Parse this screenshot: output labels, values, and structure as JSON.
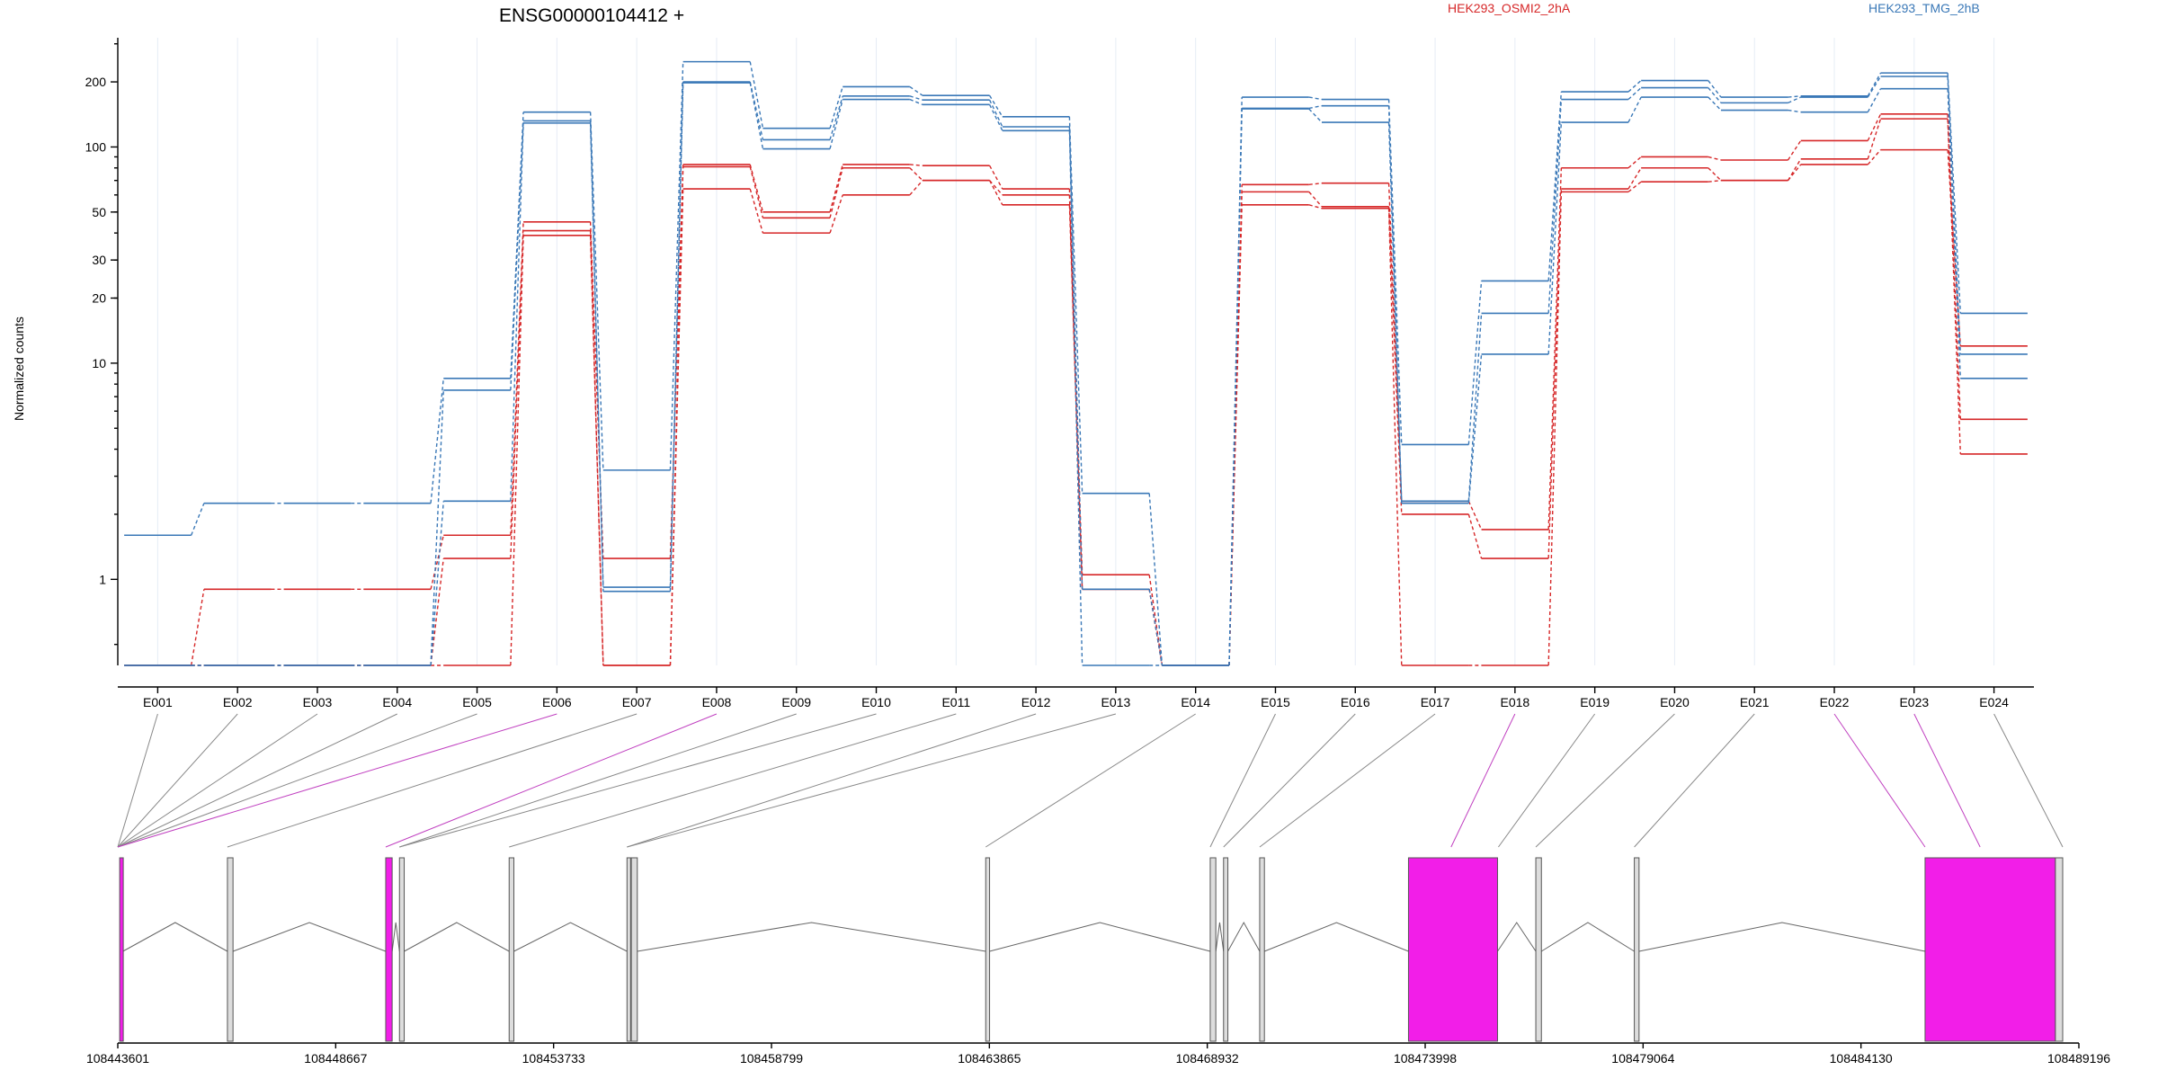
{
  "chart_data": {
    "type": "line",
    "title": "ENSG00000104412 +",
    "ylabel": "Normalized counts",
    "yscale": "log",
    "ylim": [
      0.4,
      320
    ],
    "yticks": [
      1,
      10,
      20,
      30,
      50,
      100,
      200
    ],
    "exons": [
      "E001",
      "E002",
      "E003",
      "E004",
      "E005",
      "E006",
      "E007",
      "E008",
      "E009",
      "E010",
      "E011",
      "E012",
      "E013",
      "E014",
      "E015",
      "E016",
      "E017",
      "E018",
      "E019",
      "E020",
      "E021",
      "E022",
      "E023",
      "E024"
    ],
    "legend": [
      {
        "name": "HEK293_OSMI2_2hA",
        "color": "#d62728"
      },
      {
        "name": "HEK293_TMG_2hB",
        "color": "#3a78b7"
      }
    ],
    "series": [
      {
        "group": "HEK293_OSMI2_2hA",
        "color": "#d62728",
        "values": [
          0.4,
          0.9,
          0.9,
          0.9,
          1.6,
          45,
          1.25,
          83,
          50,
          83,
          82,
          64,
          1.05,
          0.4,
          67,
          68,
          2.3,
          1.7,
          80,
          90,
          87,
          107,
          142,
          5.5
        ]
      },
      {
        "group": "HEK293_OSMI2_2hA",
        "color": "#d62728",
        "values": [
          0.4,
          0.4,
          0.4,
          0.4,
          1.25,
          41,
          0.4,
          81,
          47,
          80,
          70,
          60,
          0.9,
          0.4,
          62,
          53,
          2,
          1.25,
          64,
          80,
          70,
          88,
          135,
          3.8
        ]
      },
      {
        "group": "HEK293_OSMI2_2hA",
        "color": "#d62728",
        "values": [
          0.4,
          0.4,
          0.4,
          0.4,
          0.4,
          39,
          0.4,
          64,
          40,
          60,
          70,
          54,
          0.9,
          0.4,
          54,
          52,
          0.4,
          0.4,
          62,
          69,
          70,
          83,
          97,
          12
        ]
      },
      {
        "group": "HEK293_TMG_2hB",
        "color": "#3a78b7",
        "values": [
          1.6,
          2.25,
          2.25,
          2.25,
          8.5,
          145,
          3.2,
          248,
          122,
          190,
          173,
          138,
          2.5,
          0.4,
          170,
          166,
          4.2,
          24,
          180,
          203,
          170,
          172,
          220,
          17
        ]
      },
      {
        "group": "HEK293_TMG_2hB",
        "color": "#3a78b7",
        "values": [
          0.4,
          0.4,
          0.4,
          0.4,
          7.5,
          132,
          0.92,
          200,
          108,
          172,
          165,
          124,
          0.9,
          0.4,
          151,
          155,
          2.3,
          17,
          166,
          188,
          160,
          170,
          212,
          11
        ]
      },
      {
        "group": "HEK293_TMG_2hB",
        "color": "#3a78b7",
        "values": [
          0.4,
          0.4,
          0.4,
          0.4,
          2.3,
          129,
          0.88,
          198,
          98,
          166,
          157,
          119,
          0.4,
          0.4,
          150,
          130,
          2.25,
          11,
          130,
          170,
          148,
          145,
          186,
          8.5
        ]
      }
    ],
    "genomic_ticks": [
      "108443601",
      "108448667",
      "108453733",
      "108458799",
      "108463865",
      "108468932",
      "108473998",
      "108479064",
      "108484130",
      "108489196"
    ],
    "genomic_range": [
      108443601,
      108489196
    ],
    "gene_exons": [
      {
        "start": 108443645,
        "end": 108443720,
        "highlight": true
      },
      {
        "start": 108446150,
        "end": 108446280,
        "highlight": false
      },
      {
        "start": 108449830,
        "end": 108449980,
        "highlight": true
      },
      {
        "start": 108450150,
        "end": 108450260,
        "highlight": false
      },
      {
        "start": 108452700,
        "end": 108452810,
        "highlight": false
      },
      {
        "start": 108455440,
        "end": 108455520,
        "highlight": false
      },
      {
        "start": 108455540,
        "end": 108455680,
        "highlight": false
      },
      {
        "start": 108463780,
        "end": 108463870,
        "highlight": false
      },
      {
        "start": 108469000,
        "end": 108469130,
        "highlight": false
      },
      {
        "start": 108469310,
        "end": 108469410,
        "highlight": false
      },
      {
        "start": 108470150,
        "end": 108470260,
        "highlight": false
      },
      {
        "start": 108473610,
        "end": 108475680,
        "highlight": true
      },
      {
        "start": 108476570,
        "end": 108476700,
        "highlight": false
      },
      {
        "start": 108478860,
        "end": 108478970,
        "highlight": false
      },
      {
        "start": 108485620,
        "end": 108488650,
        "highlight": true
      },
      {
        "start": 108488650,
        "end": 108488820,
        "highlight": false
      }
    ],
    "exon_map": [
      {
        "exon": "E001",
        "pos": 108443601,
        "highlight": false
      },
      {
        "exon": "E002",
        "pos": 108443601,
        "highlight": false
      },
      {
        "exon": "E003",
        "pos": 108443601,
        "highlight": false
      },
      {
        "exon": "E004",
        "pos": 108443601,
        "highlight": false
      },
      {
        "exon": "E005",
        "pos": 108443601,
        "highlight": false
      },
      {
        "exon": "E006",
        "pos": 108443601,
        "highlight": true
      },
      {
        "exon": "E007",
        "pos": 108446150,
        "highlight": false
      },
      {
        "exon": "E008",
        "pos": 108449830,
        "highlight": true
      },
      {
        "exon": "E009",
        "pos": 108450150,
        "highlight": false
      },
      {
        "exon": "E010",
        "pos": 108450150,
        "highlight": false
      },
      {
        "exon": "E011",
        "pos": 108452700,
        "highlight": false
      },
      {
        "exon": "E012",
        "pos": 108455440,
        "highlight": false
      },
      {
        "exon": "E013",
        "pos": 108455440,
        "highlight": false
      },
      {
        "exon": "E014",
        "pos": 108463780,
        "highlight": false
      },
      {
        "exon": "E015",
        "pos": 108469000,
        "highlight": false
      },
      {
        "exon": "E016",
        "pos": 108469310,
        "highlight": false
      },
      {
        "exon": "E017",
        "pos": 108470150,
        "highlight": false
      },
      {
        "exon": "E018",
        "pos": 108474600,
        "highlight": true
      },
      {
        "exon": "E019",
        "pos": 108475700,
        "highlight": false
      },
      {
        "exon": "E020",
        "pos": 108476570,
        "highlight": false
      },
      {
        "exon": "E021",
        "pos": 108478860,
        "highlight": false
      },
      {
        "exon": "E022",
        "pos": 108485620,
        "highlight": true
      },
      {
        "exon": "E023",
        "pos": 108486900,
        "highlight": true
      },
      {
        "exon": "E024",
        "pos": 108488820,
        "highlight": false
      }
    ],
    "grid": true
  }
}
